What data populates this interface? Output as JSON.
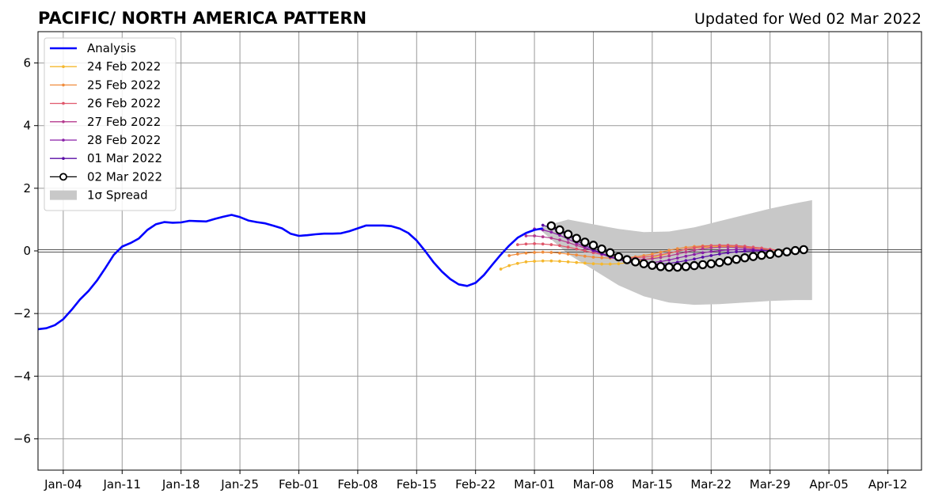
{
  "chart_data": {
    "type": "line",
    "title": "PACIFIC/ NORTH AMERICA PATTERN",
    "subtitle": "Updated for Wed 02 Mar 2022",
    "xlabel": "",
    "ylabel": "",
    "xlim": [
      "2022-01-01",
      "2022-04-16"
    ],
    "ylim": [
      -7,
      7
    ],
    "grid": true,
    "legend_position": "top-left",
    "x_ticks": [
      {
        "date": "2022-01-04",
        "label": "Jan-04"
      },
      {
        "date": "2022-01-11",
        "label": "Jan-11"
      },
      {
        "date": "2022-01-18",
        "label": "Jan-18"
      },
      {
        "date": "2022-01-25",
        "label": "Jan-25"
      },
      {
        "date": "2022-02-01",
        "label": "Feb-01"
      },
      {
        "date": "2022-02-08",
        "label": "Feb-08"
      },
      {
        "date": "2022-02-15",
        "label": "Feb-15"
      },
      {
        "date": "2022-02-22",
        "label": "Feb-22"
      },
      {
        "date": "2022-03-01",
        "label": "Mar-01"
      },
      {
        "date": "2022-03-08",
        "label": "Mar-08"
      },
      {
        "date": "2022-03-15",
        "label": "Mar-15"
      },
      {
        "date": "2022-03-22",
        "label": "Mar-22"
      },
      {
        "date": "2022-03-29",
        "label": "Mar-29"
      },
      {
        "date": "2022-04-05",
        "label": "Apr-05"
      },
      {
        "date": "2022-04-12",
        "label": "Apr-12"
      }
    ],
    "y_ticks": [
      {
        "value": 6,
        "label": "6"
      },
      {
        "value": 4,
        "label": "4"
      },
      {
        "value": 2,
        "label": "2"
      },
      {
        "value": 0,
        "label": "0"
      },
      {
        "value": -2,
        "label": "−2"
      },
      {
        "value": -4,
        "label": "−4"
      },
      {
        "value": -6,
        "label": "−6"
      }
    ],
    "analysis": {
      "name": "Analysis",
      "color": "#0000ff",
      "x": [
        "2022-01-01",
        "2022-01-02",
        "2022-01-03",
        "2022-01-04",
        "2022-01-05",
        "2022-01-06",
        "2022-01-07",
        "2022-01-08",
        "2022-01-09",
        "2022-01-10",
        "2022-01-11",
        "2022-01-12",
        "2022-01-13",
        "2022-01-14",
        "2022-01-15",
        "2022-01-16",
        "2022-01-17",
        "2022-01-18",
        "2022-01-19",
        "2022-01-20",
        "2022-01-21",
        "2022-01-22",
        "2022-01-23",
        "2022-01-24",
        "2022-01-25",
        "2022-01-26",
        "2022-01-27",
        "2022-01-28",
        "2022-01-29",
        "2022-01-30",
        "2022-01-31",
        "2022-02-01",
        "2022-02-02",
        "2022-02-03",
        "2022-02-04",
        "2022-02-05",
        "2022-02-06",
        "2022-02-07",
        "2022-02-08",
        "2022-02-09",
        "2022-02-10",
        "2022-02-11",
        "2022-02-12",
        "2022-02-13",
        "2022-02-14",
        "2022-02-15",
        "2022-02-16",
        "2022-02-17",
        "2022-02-18",
        "2022-02-19",
        "2022-02-20",
        "2022-02-21",
        "2022-02-22",
        "2022-02-23",
        "2022-02-24",
        "2022-02-25",
        "2022-02-26",
        "2022-02-27",
        "2022-02-28",
        "2022-03-01",
        "2022-03-02"
      ],
      "y": [
        -2.5,
        -2.47,
        -2.37,
        -2.18,
        -1.88,
        -1.55,
        -1.28,
        -0.95,
        -0.55,
        -0.13,
        0.14,
        0.25,
        0.4,
        0.67,
        0.85,
        0.92,
        0.9,
        0.91,
        0.96,
        0.95,
        0.94,
        1.02,
        1.09,
        1.15,
        1.08,
        0.97,
        0.92,
        0.88,
        0.8,
        0.72,
        0.55,
        0.48,
        0.5,
        0.53,
        0.55,
        0.55,
        0.56,
        0.63,
        0.72,
        0.81,
        0.81,
        0.81,
        0.79,
        0.71,
        0.57,
        0.33,
        0.0,
        -0.36,
        -0.66,
        -0.9,
        -1.07,
        -1.12,
        -1.02,
        -0.77,
        -0.44,
        -0.12,
        0.17,
        0.42,
        0.57,
        0.67,
        0.72
      ]
    },
    "series": [
      {
        "name": "24 Feb 2022",
        "color": "#f5b82e",
        "start": "2022-02-25",
        "y": [
          -0.58,
          -0.47,
          -0.4,
          -0.35,
          -0.33,
          -0.32,
          -0.32,
          -0.33,
          -0.35,
          -0.37,
          -0.39,
          -0.41,
          -0.42,
          -0.42,
          -0.41,
          -0.38,
          -0.34,
          -0.29,
          -0.22,
          -0.15,
          -0.08,
          -0.01,
          0.05,
          0.09,
          0.12,
          0.13,
          0.14,
          0.14,
          0.13,
          0.12,
          0.1,
          0.08,
          0.05,
          0.02,
          0.0,
          -0.02
        ]
      },
      {
        "name": "25 Feb 2022",
        "color": "#f08c3c",
        "start": "2022-02-26",
        "y": [
          -0.15,
          -0.1,
          -0.07,
          -0.05,
          -0.04,
          -0.05,
          -0.07,
          -0.1,
          -0.13,
          -0.17,
          -0.2,
          -0.22,
          -0.23,
          -0.23,
          -0.22,
          -0.19,
          -0.15,
          -0.1,
          -0.04,
          0.02,
          0.07,
          0.11,
          0.14,
          0.16,
          0.17,
          0.17,
          0.16,
          0.15,
          0.13,
          0.1,
          0.07,
          0.04,
          0.01,
          -0.01
        ]
      },
      {
        "name": "26 Feb 2022",
        "color": "#e0566a",
        "start": "2022-02-27",
        "y": [
          0.2,
          0.22,
          0.23,
          0.22,
          0.2,
          0.17,
          0.12,
          0.06,
          0.0,
          -0.06,
          -0.12,
          -0.17,
          -0.2,
          -0.22,
          -0.22,
          -0.2,
          -0.17,
          -0.12,
          -0.07,
          -0.01,
          0.05,
          0.1,
          0.14,
          0.17,
          0.18,
          0.18,
          0.17,
          0.15,
          0.12,
          0.09,
          0.05,
          0.02
        ]
      },
      {
        "name": "27 Feb 2022",
        "color": "#b43a8e",
        "start": "2022-02-28",
        "y": [
          0.48,
          0.48,
          0.45,
          0.41,
          0.35,
          0.27,
          0.18,
          0.09,
          0.0,
          -0.08,
          -0.15,
          -0.21,
          -0.25,
          -0.27,
          -0.27,
          -0.25,
          -0.21,
          -0.16,
          -0.1,
          -0.04,
          0.02,
          0.07,
          0.1,
          0.12,
          0.12,
          0.11,
          0.09,
          0.06,
          0.03,
          0.0
        ]
      },
      {
        "name": "28 Feb 2022",
        "color": "#8a1fa8",
        "start": "2022-03-01",
        "y": [
          0.7,
          0.67,
          0.6,
          0.5,
          0.38,
          0.25,
          0.12,
          0.0,
          -0.1,
          -0.2,
          -0.28,
          -0.34,
          -0.37,
          -0.38,
          -0.37,
          -0.34,
          -0.29,
          -0.23,
          -0.17,
          -0.11,
          -0.06,
          -0.02,
          0.01,
          0.03,
          0.04,
          0.04,
          0.03,
          0.02,
          0.0
        ]
      },
      {
        "name": "01 Mar 2022",
        "color": "#5a0da6",
        "start": "2022-03-02",
        "y": [
          0.82,
          0.74,
          0.62,
          0.48,
          0.33,
          0.18,
          0.04,
          -0.08,
          -0.19,
          -0.27,
          -0.34,
          -0.39,
          -0.42,
          -0.43,
          -0.42,
          -0.4,
          -0.36,
          -0.31,
          -0.26,
          -0.2,
          -0.15,
          -0.1,
          -0.06,
          -0.03,
          -0.01,
          0.0,
          0.0,
          0.01
        ]
      },
      {
        "name": "02 Mar 2022",
        "color": "#000000",
        "start": "2022-03-03",
        "marker": "open-circle",
        "y": [
          0.8,
          0.67,
          0.53,
          0.4,
          0.28,
          0.18,
          0.06,
          -0.06,
          -0.19,
          -0.28,
          -0.35,
          -0.41,
          -0.46,
          -0.5,
          -0.52,
          -0.52,
          -0.5,
          -0.47,
          -0.44,
          -0.41,
          -0.37,
          -0.32,
          -0.27,
          -0.22,
          -0.18,
          -0.14,
          -0.11,
          -0.07,
          -0.03,
          0.01,
          0.04
        ]
      }
    ],
    "spread": {
      "name": "1σ Spread",
      "color": "#c8c8c8",
      "x": [
        "2022-03-02",
        "2022-03-05",
        "2022-03-08",
        "2022-03-11",
        "2022-03-14",
        "2022-03-17",
        "2022-03-20",
        "2022-03-23",
        "2022-03-26",
        "2022-03-29",
        "2022-04-01",
        "2022-04-03"
      ],
      "upper": [
        0.78,
        1.0,
        0.85,
        0.7,
        0.6,
        0.62,
        0.75,
        0.95,
        1.15,
        1.35,
        1.52,
        1.62
      ],
      "lower": [
        0.6,
        -0.1,
        -0.6,
        -1.1,
        -1.45,
        -1.65,
        -1.72,
        -1.7,
        -1.65,
        -1.6,
        -1.57,
        -1.57
      ]
    }
  }
}
